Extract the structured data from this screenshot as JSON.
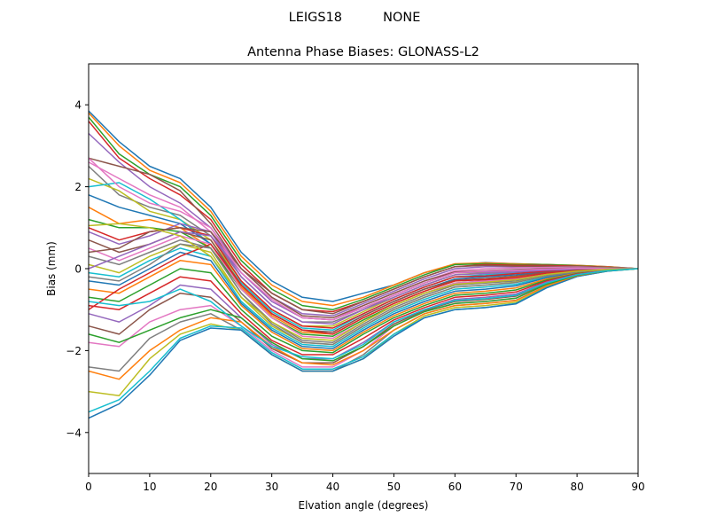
{
  "figure": {
    "suptitle": "LEIGS18          NONE"
  },
  "chart_data": {
    "type": "line",
    "title": "Antenna Phase Biases: GLONASS-L2",
    "xlabel": "Elvation angle (degrees)",
    "ylabel": "Bias (mm)",
    "xlim": [
      0,
      90
    ],
    "ylim": [
      -5,
      5
    ],
    "xticks": [
      0,
      10,
      20,
      30,
      40,
      50,
      60,
      70,
      80,
      90
    ],
    "yticks": [
      -4,
      -2,
      0,
      2,
      4
    ],
    "grid": false,
    "legend": "none",
    "x": [
      0,
      5,
      10,
      15,
      20,
      25,
      30,
      35,
      40,
      45,
      50,
      55,
      60,
      65,
      70,
      75,
      80,
      85,
      90
    ],
    "colors": [
      "#1f77b4",
      "#ff7f0e",
      "#2ca02c",
      "#d62728",
      "#9467bd",
      "#8c564b",
      "#e377c2",
      "#7f7f7f",
      "#bcbd22",
      "#17becf"
    ],
    "series": [
      {
        "values": [
          3.85,
          3.1,
          2.5,
          2.2,
          1.5,
          0.4,
          -0.3,
          -0.7,
          -0.8,
          -0.6,
          -0.4,
          -0.1,
          0.1,
          0.15,
          0.12,
          0.1,
          0.08,
          0.05,
          0.0
        ]
      },
      {
        "values": [
          3.8,
          3.0,
          2.4,
          2.1,
          1.4,
          0.3,
          -0.4,
          -0.8,
          -0.9,
          -0.7,
          -0.4,
          -0.1,
          0.12,
          0.14,
          0.12,
          0.1,
          0.08,
          0.05,
          0.0
        ]
      },
      {
        "values": [
          3.7,
          2.8,
          2.3,
          2.0,
          1.3,
          0.2,
          -0.5,
          -0.9,
          -1.0,
          -0.75,
          -0.45,
          -0.15,
          0.1,
          0.12,
          0.1,
          0.1,
          0.07,
          0.04,
          0.0
        ]
      },
      {
        "values": [
          3.6,
          2.7,
          2.2,
          1.8,
          1.2,
          0.1,
          -0.6,
          -1.0,
          -1.05,
          -0.8,
          -0.5,
          -0.2,
          0.05,
          0.1,
          0.08,
          0.08,
          0.06,
          0.04,
          0.0
        ]
      },
      {
        "values": [
          3.3,
          2.6,
          2.0,
          1.6,
          1.0,
          0.0,
          -0.7,
          -1.1,
          -1.15,
          -0.85,
          -0.55,
          -0.25,
          0.0,
          0.05,
          0.05,
          0.05,
          0.05,
          0.03,
          0.0
        ]
      },
      {
        "values": [
          2.7,
          2.5,
          2.3,
          1.9,
          1.1,
          0.0,
          -0.6,
          -1.0,
          -1.1,
          -0.8,
          -0.5,
          -0.2,
          0.05,
          0.08,
          0.06,
          0.06,
          0.05,
          0.03,
          0.0
        ]
      },
      {
        "values": [
          2.6,
          2.2,
          1.8,
          1.5,
          0.9,
          -0.1,
          -0.8,
          -1.2,
          -1.25,
          -0.9,
          -0.6,
          -0.3,
          -0.05,
          0.0,
          0.02,
          0.03,
          0.04,
          0.02,
          0.0
        ]
      },
      {
        "values": [
          2.5,
          1.8,
          1.5,
          1.3,
          0.8,
          -0.2,
          -0.9,
          -1.3,
          -1.3,
          -1.0,
          -0.65,
          -0.35,
          -0.1,
          -0.05,
          -0.02,
          0.0,
          0.02,
          0.02,
          0.0
        ]
      },
      {
        "values": [
          2.2,
          1.9,
          1.4,
          1.2,
          0.7,
          -0.3,
          -1.0,
          -1.4,
          -1.4,
          -1.05,
          -0.7,
          -0.4,
          -0.15,
          -0.1,
          -0.05,
          -0.02,
          0.0,
          0.01,
          0.0
        ]
      },
      {
        "values": [
          2.0,
          2.1,
          1.7,
          1.2,
          0.6,
          -0.35,
          -1.05,
          -1.45,
          -1.5,
          -1.1,
          -0.75,
          -0.45,
          -0.2,
          -0.15,
          -0.1,
          -0.05,
          -0.02,
          0.0,
          0.0
        ]
      },
      {
        "values": [
          1.8,
          1.5,
          1.3,
          1.1,
          0.6,
          -0.4,
          -1.1,
          -1.5,
          -1.55,
          -1.15,
          -0.8,
          -0.5,
          -0.25,
          -0.2,
          -0.15,
          -0.08,
          -0.04,
          -0.01,
          0.0
        ]
      },
      {
        "values": [
          1.5,
          1.1,
          1.2,
          1.0,
          0.5,
          -0.45,
          -1.15,
          -1.55,
          -1.6,
          -1.2,
          -0.85,
          -0.55,
          -0.3,
          -0.25,
          -0.2,
          -0.1,
          -0.05,
          -0.02,
          0.0
        ]
      },
      {
        "values": [
          1.2,
          1.0,
          1.0,
          0.9,
          0.5,
          -0.5,
          -1.2,
          -1.6,
          -1.65,
          -1.25,
          -0.9,
          -0.6,
          -0.35,
          -0.3,
          -0.25,
          -0.12,
          -0.06,
          -0.02,
          0.0
        ]
      },
      {
        "values": [
          1.0,
          0.7,
          0.9,
          1.0,
          0.8,
          -0.3,
          -1.0,
          -1.4,
          -1.45,
          -1.1,
          -0.75,
          -0.45,
          -0.2,
          -0.18,
          -0.12,
          -0.06,
          -0.03,
          -0.01,
          0.0
        ]
      },
      {
        "values": [
          0.9,
          0.6,
          0.8,
          1.1,
          0.9,
          -0.2,
          -0.9,
          -1.3,
          -1.35,
          -1.0,
          -0.7,
          -0.4,
          -0.15,
          -0.12,
          -0.08,
          -0.04,
          -0.02,
          0.0,
          0.0
        ]
      },
      {
        "values": [
          0.7,
          0.4,
          0.6,
          0.9,
          0.7,
          -0.4,
          -1.1,
          -1.5,
          -1.55,
          -1.15,
          -0.8,
          -0.5,
          -0.28,
          -0.24,
          -0.18,
          -0.09,
          -0.04,
          -0.01,
          0.0
        ]
      },
      {
        "values": [
          0.5,
          0.2,
          0.5,
          0.8,
          0.6,
          -0.5,
          -1.2,
          -1.65,
          -1.7,
          -1.3,
          -0.9,
          -0.6,
          -0.35,
          -0.3,
          -0.25,
          -0.12,
          -0.06,
          -0.02,
          0.0
        ]
      },
      {
        "values": [
          0.3,
          0.1,
          0.4,
          0.7,
          0.5,
          -0.6,
          -1.3,
          -1.75,
          -1.8,
          -1.35,
          -0.95,
          -0.65,
          -0.4,
          -0.35,
          -0.3,
          -0.15,
          -0.07,
          -0.02,
          0.0
        ]
      },
      {
        "values": [
          0.1,
          -0.1,
          0.3,
          0.6,
          0.4,
          -0.7,
          -1.4,
          -1.8,
          -1.85,
          -1.4,
          -1.0,
          -0.7,
          -0.45,
          -0.4,
          -0.33,
          -0.18,
          -0.08,
          -0.02,
          0.0
        ]
      },
      {
        "values": [
          -0.1,
          -0.2,
          0.2,
          0.5,
          0.3,
          -0.8,
          -1.45,
          -1.85,
          -1.9,
          -1.45,
          -1.05,
          -0.75,
          -0.5,
          -0.45,
          -0.38,
          -0.2,
          -0.09,
          -0.03,
          0.0
        ]
      },
      {
        "values": [
          -0.3,
          -0.4,
          0.0,
          0.4,
          0.2,
          -0.85,
          -1.5,
          -1.9,
          -1.95,
          -1.5,
          -1.1,
          -0.8,
          -0.55,
          -0.5,
          -0.42,
          -0.22,
          -0.1,
          -0.03,
          0.0
        ]
      },
      {
        "values": [
          -0.5,
          -0.6,
          -0.2,
          0.2,
          0.1,
          -0.9,
          -1.55,
          -1.95,
          -2.0,
          -1.55,
          -1.15,
          -0.85,
          -0.6,
          -0.55,
          -0.47,
          -0.25,
          -0.11,
          -0.03,
          0.0
        ]
      },
      {
        "values": [
          -0.7,
          -0.8,
          -0.4,
          0.0,
          -0.1,
          -1.0,
          -1.65,
          -2.0,
          -2.05,
          -1.6,
          -1.2,
          -0.9,
          -0.65,
          -0.6,
          -0.52,
          -0.28,
          -0.12,
          -0.04,
          0.0
        ]
      },
      {
        "values": [
          -0.9,
          -1.0,
          -0.6,
          -0.2,
          -0.3,
          -1.1,
          -1.75,
          -2.1,
          -2.1,
          -1.7,
          -1.25,
          -0.95,
          -0.7,
          -0.65,
          -0.57,
          -0.3,
          -0.13,
          -0.04,
          0.0
        ]
      },
      {
        "values": [
          -1.1,
          -1.3,
          -0.9,
          -0.4,
          -0.5,
          -1.2,
          -1.85,
          -2.2,
          -2.2,
          -1.8,
          -1.3,
          -1.0,
          -0.75,
          -0.7,
          -0.62,
          -0.33,
          -0.14,
          -0.04,
          0.0
        ]
      },
      {
        "values": [
          -1.4,
          -1.6,
          -1.0,
          -0.6,
          -0.7,
          -1.3,
          -1.95,
          -2.3,
          -2.3,
          -1.9,
          -1.35,
          -1.02,
          -0.8,
          -0.75,
          -0.67,
          -0.36,
          -0.15,
          -0.05,
          0.0
        ]
      },
      {
        "values": [
          -1.8,
          -1.9,
          -1.3,
          -1.0,
          -0.9,
          -1.4,
          -2.0,
          -2.4,
          -2.4,
          -2.0,
          -1.4,
          -1.05,
          -0.85,
          -0.8,
          -0.72,
          -0.39,
          -0.16,
          -0.05,
          0.0
        ]
      },
      {
        "values": [
          -2.4,
          -2.5,
          -1.7,
          -1.3,
          -1.1,
          -1.5,
          -2.1,
          -2.5,
          -2.5,
          -2.1,
          -1.5,
          -1.1,
          -0.9,
          -0.85,
          -0.77,
          -0.42,
          -0.17,
          -0.05,
          0.0
        ]
      },
      {
        "values": [
          -3.0,
          -3.1,
          -2.2,
          -1.6,
          -1.35,
          -1.5,
          -2.1,
          -2.5,
          -2.5,
          -2.2,
          -1.6,
          -1.15,
          -0.95,
          -0.9,
          -0.82,
          -0.45,
          -0.18,
          -0.06,
          0.0
        ]
      },
      {
        "values": [
          -3.5,
          -3.2,
          -2.5,
          -1.7,
          -1.4,
          -1.45,
          -2.05,
          -2.45,
          -2.45,
          -2.15,
          -1.6,
          -1.2,
          -1.0,
          -0.95,
          -0.85,
          -0.46,
          -0.19,
          -0.06,
          0.0
        ]
      },
      {
        "values": [
          -3.65,
          -3.3,
          -2.6,
          -1.75,
          -1.45,
          -1.5,
          -2.1,
          -2.5,
          -2.5,
          -2.2,
          -1.65,
          -1.2,
          -1.0,
          -0.95,
          -0.86,
          -0.47,
          -0.19,
          -0.06,
          0.0
        ]
      },
      {
        "values": [
          -2.5,
          -2.7,
          -2.0,
          -1.5,
          -1.2,
          -1.3,
          -1.9,
          -2.3,
          -2.35,
          -2.0,
          -1.5,
          -1.1,
          -0.9,
          -0.85,
          -0.78,
          -0.42,
          -0.17,
          -0.05,
          0.0
        ]
      },
      {
        "values": [
          -1.6,
          -1.8,
          -1.5,
          -1.2,
          -1.0,
          -1.2,
          -1.8,
          -2.2,
          -2.25,
          -1.9,
          -1.4,
          -1.05,
          -0.85,
          -0.8,
          -0.72,
          -0.38,
          -0.16,
          -0.05,
          0.0
        ]
      },
      {
        "values": [
          -1.0,
          -0.5,
          -0.1,
          0.3,
          0.6,
          -0.4,
          -1.1,
          -1.5,
          -1.6,
          -1.2,
          -0.85,
          -0.55,
          -0.3,
          -0.27,
          -0.22,
          -0.11,
          -0.05,
          -0.02,
          0.0
        ]
      },
      {
        "values": [
          0.0,
          0.3,
          0.6,
          0.9,
          0.8,
          -0.1,
          -0.8,
          -1.2,
          -1.25,
          -0.95,
          -0.65,
          -0.35,
          -0.1,
          -0.08,
          -0.05,
          -0.02,
          0.0,
          0.0,
          0.0
        ]
      },
      {
        "values": [
          0.4,
          0.5,
          0.9,
          1.0,
          0.9,
          0.0,
          -0.7,
          -1.15,
          -1.2,
          -0.9,
          -0.6,
          -0.3,
          -0.08,
          -0.05,
          -0.03,
          0.0,
          0.01,
          0.0,
          0.0
        ]
      },
      {
        "values": [
          2.7,
          2.0,
          1.6,
          1.4,
          1.0,
          -0.1,
          -0.75,
          -1.2,
          -1.25,
          -0.95,
          -0.65,
          -0.35,
          -0.1,
          -0.06,
          -0.04,
          -0.01,
          0.01,
          0.0,
          0.0
        ]
      },
      {
        "values": [
          -0.2,
          -0.3,
          0.1,
          0.6,
          0.5,
          -0.6,
          -1.35,
          -1.8,
          -1.85,
          -1.4,
          -1.0,
          -0.7,
          -0.45,
          -0.4,
          -0.34,
          -0.18,
          -0.08,
          -0.02,
          0.0
        ]
      },
      {
        "values": [
          1.05,
          1.1,
          1.0,
          0.8,
          0.3,
          -0.7,
          -1.3,
          -1.7,
          -1.75,
          -1.3,
          -0.9,
          -0.6,
          -0.38,
          -0.33,
          -0.27,
          -0.14,
          -0.06,
          -0.02,
          0.0
        ]
      },
      {
        "values": [
          -0.8,
          -0.9,
          -0.8,
          -0.5,
          -0.8,
          -1.4,
          -1.9,
          -2.15,
          -2.2,
          -1.85,
          -1.3,
          -1.0,
          -0.78,
          -0.73,
          -0.65,
          -0.35,
          -0.15,
          -0.05,
          0.0
        ]
      }
    ]
  }
}
